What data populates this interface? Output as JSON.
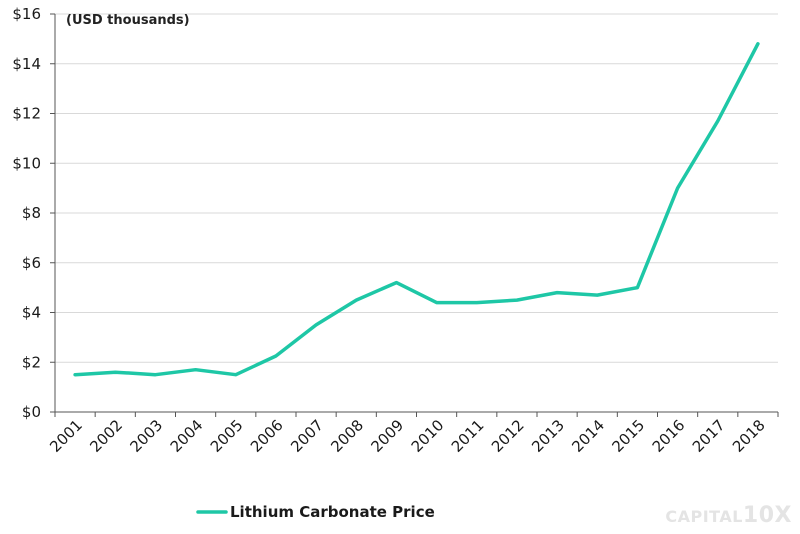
{
  "colors": {
    "series": "#1ec7a6",
    "grid": "#d9d9d9",
    "text": "#1a1a1a"
  },
  "watermark": {
    "text_small": "CAPITAL",
    "text_big": "10X"
  },
  "chart_data": {
    "type": "line",
    "title": "",
    "unit_label": "(USD thousands)",
    "x": [
      "2001",
      "2002",
      "2003",
      "2004",
      "2005",
      "2006",
      "2007",
      "2008",
      "2009",
      "2010",
      "2011",
      "2012",
      "2013",
      "2014",
      "2015",
      "2016",
      "2017",
      "2018"
    ],
    "series": [
      {
        "name": "Lithium Carbonate Price",
        "values": [
          1.5,
          1.6,
          1.5,
          1.7,
          1.5,
          2.25,
          3.5,
          4.5,
          5.2,
          4.4,
          4.4,
          4.5,
          4.8,
          4.7,
          5.0,
          9.0,
          11.7,
          14.8
        ]
      }
    ],
    "ylim": [
      0,
      16
    ],
    "yticks": [
      0,
      2,
      4,
      6,
      8,
      10,
      12,
      14,
      16
    ],
    "ytick_labels": [
      "$0",
      "$2",
      "$4",
      "$6",
      "$8",
      "$10",
      "$12",
      "$14",
      "$16"
    ],
    "grid": true,
    "legend_position": "bottom-left"
  }
}
